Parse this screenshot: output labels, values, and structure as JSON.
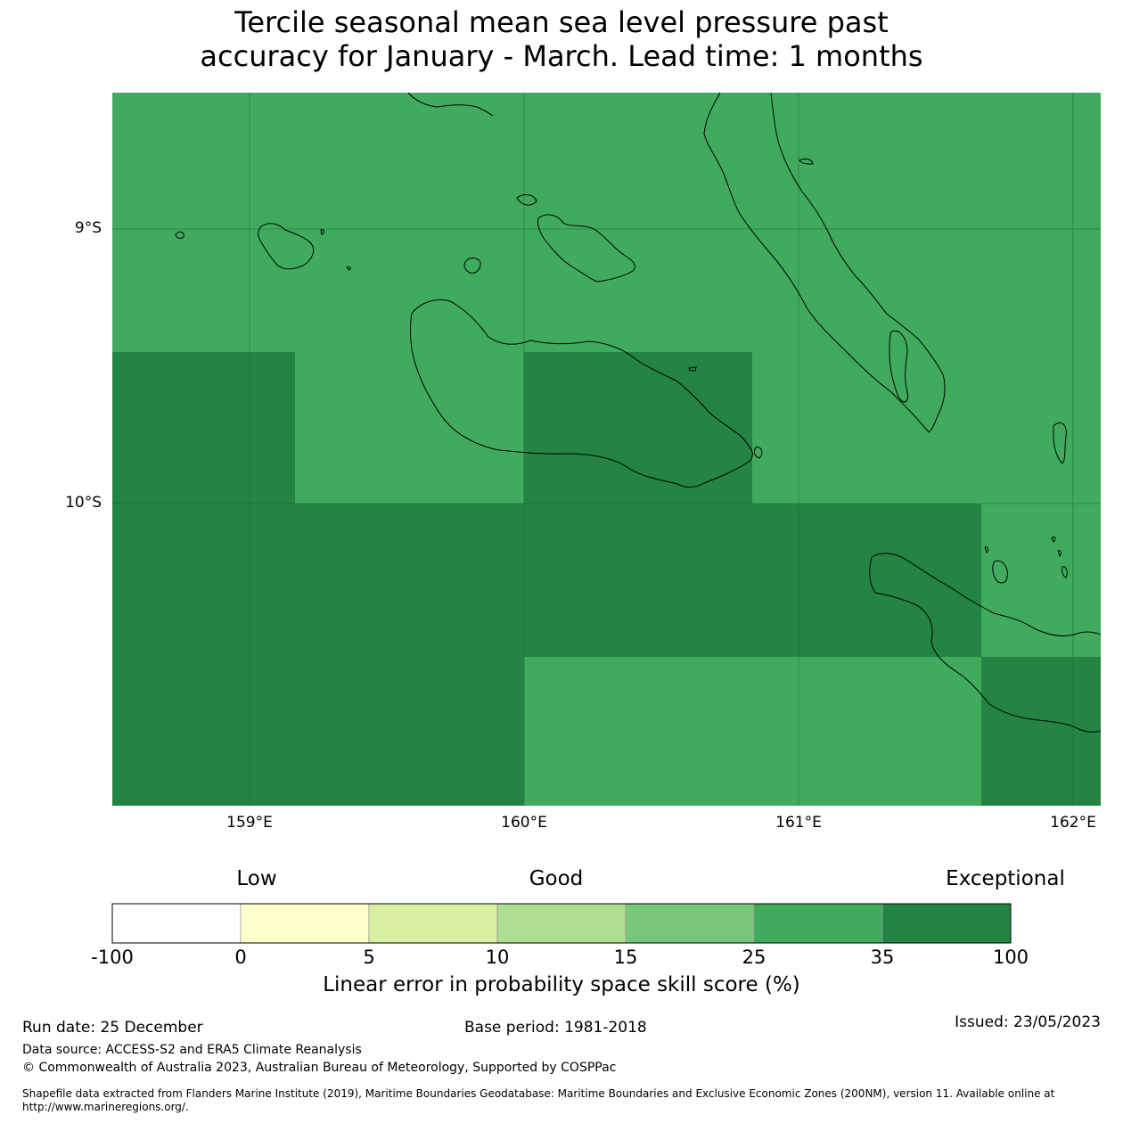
{
  "title_line1": "Tercile seasonal mean sea level pressure past",
  "title_line2": "accuracy for January - March. Lead time: 1 months",
  "map": {
    "lat_labels": [
      "9°S",
      "10°S"
    ],
    "lon_labels": [
      "159°E",
      "160°E",
      "161°E",
      "162°E"
    ],
    "colors": {
      "score_25_35": "#41ab5d",
      "score_35_100": "#238443",
      "coastline": "#000000"
    }
  },
  "colorbar": {
    "category_labels": [
      "Low",
      "Good",
      "Exceptional"
    ],
    "ticks": [
      "-100",
      "0",
      "5",
      "10",
      "15",
      "25",
      "35",
      "100"
    ],
    "colors": [
      "#ffffff",
      "#ffffcc",
      "#d9f0a3",
      "#addd8e",
      "#78c679",
      "#41ab5d",
      "#238443"
    ],
    "title": "Linear error in probability space skill score (%)"
  },
  "footer": {
    "run_date": "Run date: 25 December",
    "base_period": "Base period: 1981-2018",
    "issued": "Issued: 23/05/2023",
    "data_source": "Data source: ACCESS-S2 and ERA5 Climate Reanalysis",
    "copyright": "© Commonwealth of Australia 2023, Australian Bureau of Meteorology, Supported by COSPPac",
    "shapefile_line1": "Shapefile data extracted from Flanders Marine Institute (2019), Maritime Boundaries Geodatabase: Maritime Boundaries and Exclusive Economic Zones (200NM), version 11. Available online at",
    "shapefile_line2": "http://www.marineregions.org/."
  }
}
